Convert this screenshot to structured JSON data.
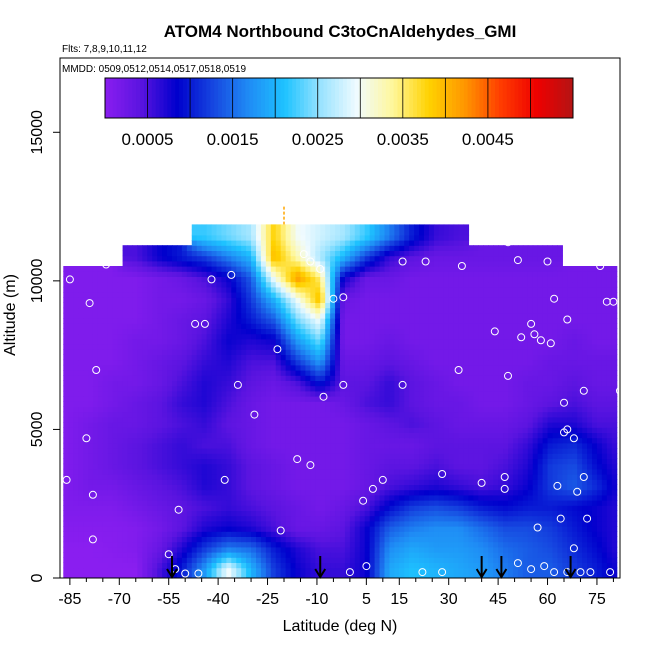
{
  "chart_data": {
    "type": "heatmap",
    "title": "ATOM4 Northbound C3toCnAldehydes_GMI",
    "flights_label": "Flts: 7,8,9,10,11,12",
    "dates_label": "MMDD: 0509,0512,0514,0517,0518,0519",
    "xlabel": "Latitude (deg N)",
    "ylabel": "Altitude (m)",
    "xlim": [
      -88,
      82
    ],
    "ylim": [
      0,
      17500
    ],
    "x_ticks": [
      -85,
      -70,
      -55,
      -40,
      -25,
      -10,
      5,
      15,
      30,
      45,
      60,
      75
    ],
    "x_minor_ticks": [
      -80,
      -75,
      -65,
      -60,
      -50,
      -45,
      -35,
      -30,
      -20,
      -15,
      -5,
      0,
      10,
      20,
      25,
      35,
      40,
      50,
      55,
      65,
      70,
      80
    ],
    "y_ticks": [
      0,
      5000,
      10000,
      15000
    ],
    "colorbar": {
      "min": 0.0,
      "max": 0.0055,
      "tick_values": [
        0.0005,
        0.0015,
        0.0025,
        0.0035,
        0.0045
      ],
      "tick_labels": [
        "0.0005",
        "0.0015",
        "0.0025",
        "0.0035",
        "0.0045"
      ],
      "colors": [
        "#8a1ef0",
        "#5a14e0",
        "#0000cd",
        "#1646e0",
        "#1f8cf5",
        "#1ec3ff",
        "#9ae3ff",
        "#f0fbff",
        "#fff79a",
        "#ffd200",
        "#ff9600",
        "#ff3c00",
        "#ee0000",
        "#b41414"
      ]
    },
    "field_lat": [
      -86,
      -79,
      -72,
      -65,
      -58,
      -51,
      -44,
      -37,
      -30,
      -23,
      -16,
      -9,
      -2,
      5,
      12,
      19,
      26,
      33,
      40,
      47,
      54,
      61,
      68,
      75,
      80
    ],
    "field_alt": [
      300,
      1000,
      1700,
      2400,
      3100,
      3800,
      4500,
      5200,
      5900,
      6600,
      7300,
      8000,
      8700,
      9400,
      10100,
      10800,
      11500
    ],
    "field": [
      [
        0.0,
        0.0,
        0.0,
        0.0,
        0.0005,
        0.001,
        0.0018,
        0.003,
        0.002,
        0.0012,
        0.0008,
        0.0006,
        0.0006,
        0.0008,
        0.0019,
        0.0021,
        0.002,
        0.0019,
        0.0018,
        0.0016,
        0.0014,
        0.0014,
        0.0012,
        0.001,
        0.0008
      ],
      [
        0.0,
        0.0,
        3e-05,
        8e-05,
        0.0003,
        0.0007,
        0.0012,
        0.0016,
        0.0015,
        0.001,
        0.0007,
        0.0005,
        0.0005,
        0.0008,
        0.0017,
        0.0019,
        0.0018,
        0.0018,
        0.0017,
        0.0015,
        0.0014,
        0.0013,
        0.0011,
        0.0009,
        0.0007
      ],
      [
        5e-05,
        5e-05,
        5e-05,
        8e-05,
        0.0002,
        0.0004,
        0.0007,
        0.0008,
        0.0007,
        0.0005,
        0.0003,
        0.0003,
        0.0004,
        0.0008,
        0.0014,
        0.0016,
        0.0017,
        0.0017,
        0.0015,
        0.0013,
        0.0013,
        0.0012,
        0.001,
        0.0008,
        0.0007
      ],
      [
        0.0001,
        0.0001,
        0.0001,
        0.0002,
        0.0003,
        0.0004,
        0.0005,
        0.0006,
        0.0005,
        0.0004,
        0.0003,
        0.0002,
        0.0003,
        0.0005,
        0.0009,
        0.0012,
        0.0013,
        0.0012,
        0.001,
        0.0009,
        0.001,
        0.001,
        0.0009,
        0.0008,
        0.0007
      ],
      [
        0.0001,
        0.0002,
        0.0002,
        0.0003,
        0.0004,
        0.0005,
        0.0007,
        0.0006,
        0.0004,
        0.0003,
        0.0002,
        0.0002,
        0.0002,
        0.0003,
        0.0005,
        0.0006,
        0.0007,
        0.0006,
        0.0005,
        0.0006,
        0.0008,
        0.0012,
        0.0014,
        0.0011,
        0.0008
      ],
      [
        0.0001,
        0.0002,
        0.0003,
        0.0004,
        0.0005,
        0.0006,
        0.0007,
        0.0006,
        0.0004,
        0.0003,
        0.0002,
        0.0002,
        0.0002,
        0.0003,
        0.0004,
        0.0004,
        0.0005,
        0.0004,
        0.0004,
        0.0005,
        0.0007,
        0.0012,
        0.0013,
        0.0009,
        0.0007
      ],
      [
        0.0001,
        0.0002,
        0.0003,
        0.0004,
        0.0005,
        0.0006,
        0.0005,
        0.0005,
        0.0003,
        0.0002,
        0.0002,
        0.0002,
        0.0002,
        0.0003,
        0.0003,
        0.0003,
        0.0004,
        0.0004,
        0.0004,
        0.0004,
        0.0006,
        0.001,
        0.0011,
        0.0008,
        0.0006
      ],
      [
        0.0001,
        0.0002,
        0.0003,
        0.0003,
        0.0004,
        0.0005,
        0.0006,
        0.0004,
        0.0003,
        0.0002,
        0.0002,
        0.0002,
        0.0002,
        0.0003,
        0.0004,
        0.0005,
        0.0004,
        0.0003,
        0.0003,
        0.0003,
        0.0004,
        0.0007,
        0.0007,
        0.0005,
        0.0005
      ],
      [
        0.0001,
        0.0001,
        0.0002,
        0.0003,
        0.0004,
        0.0006,
        0.0007,
        0.0005,
        0.0003,
        0.0002,
        0.0002,
        0.0002,
        0.0003,
        0.0005,
        0.0006,
        0.0004,
        0.0003,
        0.0003,
        0.0002,
        0.0002,
        0.0003,
        0.0004,
        0.0005,
        0.0004,
        0.0004
      ],
      [
        0.0001,
        0.0001,
        0.0002,
        0.0002,
        0.0003,
        0.0005,
        0.0007,
        0.0006,
        0.0004,
        0.0003,
        0.0005,
        0.001,
        0.0004,
        0.0004,
        0.0006,
        0.0004,
        0.0003,
        0.0002,
        0.0002,
        0.0002,
        0.0003,
        0.0003,
        0.0004,
        0.0003,
        0.0003
      ],
      [
        0.0001,
        0.0001,
        0.0001,
        0.0002,
        0.0003,
        0.0004,
        0.0006,
        0.0007,
        0.0005,
        0.0005,
        0.0012,
        0.0018,
        0.0003,
        0.0003,
        0.0004,
        0.0003,
        0.0002,
        0.0002,
        0.0002,
        0.0002,
        0.0002,
        0.0003,
        0.0003,
        0.0003,
        0.0003
      ],
      [
        0.0001,
        0.0001,
        0.0001,
        0.0002,
        0.0002,
        0.0003,
        0.0005,
        0.0008,
        0.0007,
        0.0008,
        0.0018,
        0.0024,
        0.0002,
        0.0002,
        0.0003,
        0.0002,
        0.0002,
        0.0002,
        0.0002,
        0.0002,
        0.0002,
        0.0002,
        0.0003,
        0.0002,
        0.0002
      ],
      [
        0.0001,
        0.0001,
        0.0001,
        0.0001,
        0.0002,
        0.0003,
        0.0004,
        0.0007,
        0.001,
        0.0014,
        0.0024,
        0.003,
        0.0002,
        0.0002,
        0.0002,
        0.0002,
        0.0002,
        0.0002,
        0.0002,
        0.0002,
        0.0002,
        0.0002,
        0.0002,
        0.0002,
        0.0002
      ],
      [
        0.0001,
        0.0001,
        0.0001,
        0.0001,
        0.0002,
        0.0002,
        0.0003,
        0.0006,
        0.0012,
        0.002,
        0.003,
        0.004,
        0.0003,
        0.0002,
        0.0002,
        0.0002,
        0.0002,
        0.0002,
        0.0002,
        0.0002,
        0.0002,
        0.0002,
        0.0002,
        0.0002,
        0.0002
      ],
      [
        0.0001,
        0.0001,
        0.0001,
        0.0001,
        0.0002,
        0.0003,
        0.0005,
        0.0008,
        0.0014,
        0.003,
        0.0042,
        0.0035,
        0.0008,
        0.0003,
        0.0003,
        0.0002,
        0.0002,
        0.0002,
        0.0002,
        0.0002,
        0.0002,
        0.0002,
        0.0002,
        0.0002,
        0.0002
      ],
      [
        null,
        null,
        null,
        0.0005,
        0.0008,
        0.001,
        0.0012,
        0.0016,
        0.002,
        0.004,
        0.0033,
        0.0026,
        0.002,
        0.0012,
        0.0006,
        0.0004,
        0.0003,
        0.0003,
        0.0003,
        0.0003,
        0.0003,
        0.0003,
        null,
        null,
        null
      ],
      [
        null,
        null,
        null,
        null,
        null,
        null,
        0.0022,
        0.0024,
        0.0026,
        0.0038,
        0.003,
        0.0028,
        0.0026,
        0.0022,
        0.0016,
        0.001,
        0.0006,
        0.0005,
        null,
        null,
        null,
        null,
        null,
        null,
        null
      ]
    ],
    "observations": [
      [
        -85,
        10050
      ],
      [
        -79,
        9250
      ],
      [
        -74,
        10550
      ],
      [
        -77,
        7000
      ],
      [
        -80,
        4700
      ],
      [
        -78,
        2800
      ],
      [
        -86,
        3300
      ],
      [
        -78,
        1300
      ],
      [
        -55,
        800
      ],
      [
        -53,
        300
      ],
      [
        -50,
        150
      ],
      [
        -46,
        150
      ],
      [
        -52,
        2300
      ],
      [
        -47,
        8550
      ],
      [
        -44,
        8550
      ],
      [
        -42,
        10050
      ],
      [
        -36,
        10200
      ],
      [
        -38,
        3300
      ],
      [
        -34,
        6500
      ],
      [
        -29,
        5500
      ],
      [
        -21,
        1600
      ],
      [
        -16,
        4000
      ],
      [
        -12,
        3800
      ],
      [
        -22,
        7700
      ],
      [
        -14,
        10900
      ],
      [
        -12,
        10650
      ],
      [
        -9,
        10400
      ],
      [
        -5,
        9400
      ],
      [
        -2,
        9450
      ],
      [
        -8,
        6100
      ],
      [
        -2,
        6500
      ],
      [
        0,
        200
      ],
      [
        4,
        2600
      ],
      [
        5,
        400
      ],
      [
        7,
        3000
      ],
      [
        10,
        3300
      ],
      [
        16,
        6500
      ],
      [
        16,
        10650
      ],
      [
        23,
        10650
      ],
      [
        22,
        200
      ],
      [
        28,
        200
      ],
      [
        33,
        7000
      ],
      [
        34,
        10500
      ],
      [
        28,
        3500
      ],
      [
        40,
        3200
      ],
      [
        48,
        11500
      ],
      [
        51,
        10700
      ],
      [
        52,
        8100
      ],
      [
        55,
        8550
      ],
      [
        56,
        8200
      ],
      [
        58,
        8000
      ],
      [
        61,
        7900
      ],
      [
        62,
        9400
      ],
      [
        66,
        8700
      ],
      [
        65,
        5900
      ],
      [
        65,
        4900
      ],
      [
        66,
        5000
      ],
      [
        68,
        4700
      ],
      [
        71,
        6300
      ],
      [
        71,
        3400
      ],
      [
        69,
        2900
      ],
      [
        68,
        1000
      ],
      [
        64,
        2000
      ],
      [
        63,
        3100
      ],
      [
        57,
        1700
      ],
      [
        55,
        300
      ],
      [
        59,
        400
      ],
      [
        62,
        200
      ],
      [
        47,
        3400
      ],
      [
        47,
        3000
      ],
      [
        44,
        8300
      ],
      [
        48,
        6800
      ],
      [
        51,
        500
      ],
      [
        66,
        200
      ],
      [
        70,
        200
      ],
      [
        73,
        200
      ],
      [
        79,
        200
      ],
      [
        82,
        6300
      ],
      [
        80,
        9300
      ],
      [
        76,
        10500
      ],
      [
        78,
        9300
      ],
      [
        72,
        10650
      ],
      [
        60,
        10650
      ],
      [
        48,
        11300
      ],
      [
        72,
        2000
      ]
    ],
    "event_markers_lat": [
      -54,
      -9,
      40,
      46,
      67
    ]
  }
}
